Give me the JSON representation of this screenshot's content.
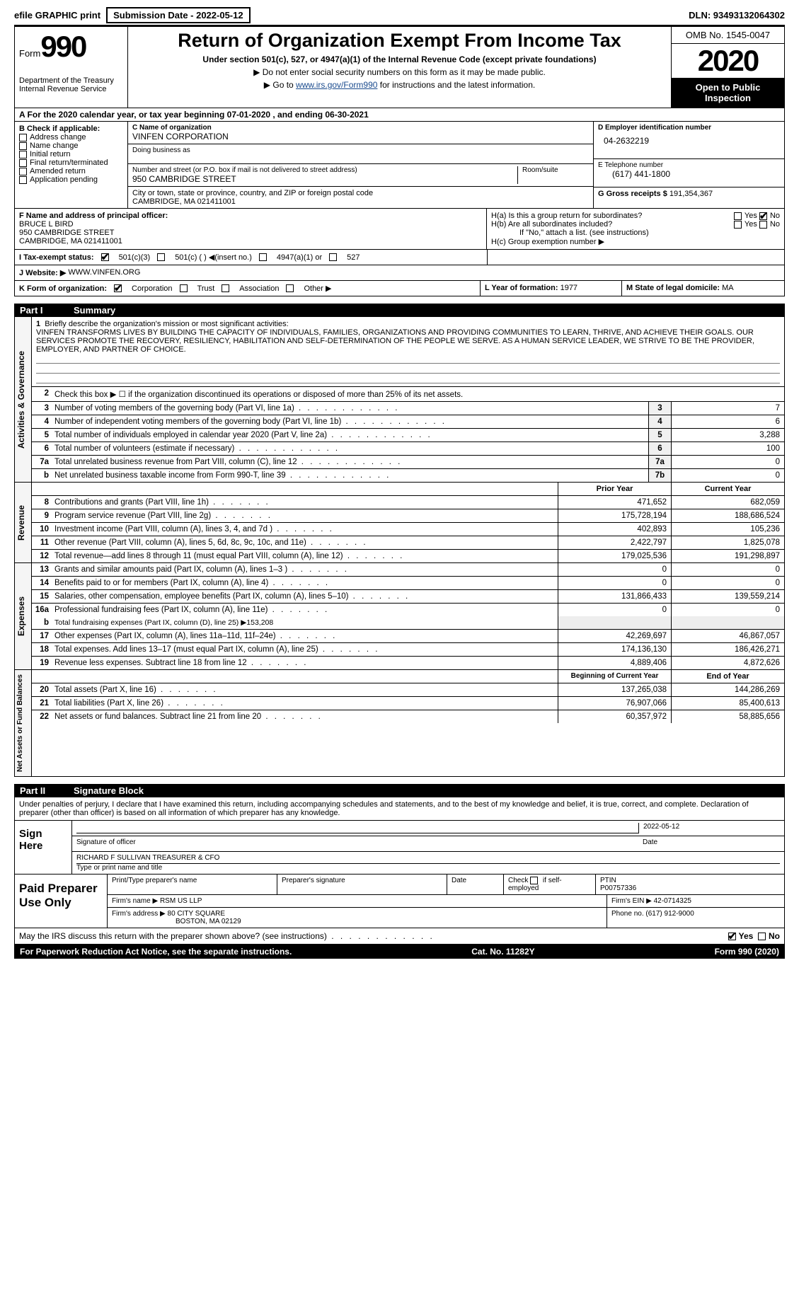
{
  "top_bar": {
    "efile": "efile GRAPHIC print",
    "submission": "Submission Date - 2022-05-12",
    "dln": "DLN: 93493132064302"
  },
  "header": {
    "form_word": "Form",
    "form_num": "990",
    "dept": "Department of the Treasury\nInternal Revenue Service",
    "title": "Return of Organization Exempt From Income Tax",
    "subtitle": "Under section 501(c), 527, or 4947(a)(1) of the Internal Revenue Code (except private foundations)",
    "note1": "Do not enter social security numbers on this form as it may be made public.",
    "note2_pre": "Go to ",
    "note2_link": "www.irs.gov/Form990",
    "note2_post": " for instructions and the latest information.",
    "omb": "OMB No. 1545-0047",
    "year": "2020",
    "open": "Open to Public Inspection"
  },
  "row_a": "A   For the 2020 calendar year, or tax year beginning 07-01-2020      , and ending 06-30-2021",
  "col_b": {
    "label": "B Check if applicable:",
    "items": [
      "Address change",
      "Name change",
      "Initial return",
      "Final return/terminated",
      "Amended return",
      "Application pending"
    ]
  },
  "col_c": {
    "name_lbl": "C Name of organization",
    "name_val": "VINFEN CORPORATION",
    "dba_lbl": "Doing business as",
    "street_lbl": "Number and street (or P.O. box if mail is not delivered to street address)",
    "street_val": "950 CAMBRIDGE STREET",
    "room_lbl": "Room/suite",
    "city_lbl": "City or town, state or province, country, and ZIP or foreign postal code",
    "city_val": "CAMBRIDGE, MA   021411001"
  },
  "col_d": {
    "ein_lbl": "D Employer identification number",
    "ein_val": "04-2632219",
    "phone_lbl": "E Telephone number",
    "phone_val": "(617) 441-1800",
    "gross_lbl": "G Gross receipts $",
    "gross_val": "191,354,367"
  },
  "row_f": {
    "lbl": "F Name and address of principal officer:",
    "name": "BRUCE L BIRD",
    "addr1": "950 CAMBRIDGE STREET",
    "addr2": "CAMBRIDGE, MA   021411001",
    "ha": "H(a)   Is this a group return for subordinates?",
    "hb": "H(b)   Are all subordinates included?",
    "hb_note": "If \"No,\" attach a list. (see instructions)",
    "hc": "H(c)   Group exemption number ▶",
    "yes": "Yes",
    "no": "No"
  },
  "row_i": {
    "lbl": "I    Tax-exempt status:",
    "o1": "501(c)(3)",
    "o2": "501(c) (  ) ◀(insert no.)",
    "o3": "4947(a)(1) or",
    "o4": "527"
  },
  "row_j": {
    "lbl": "J   Website: ▶",
    "val": "WWW.VINFEN.ORG"
  },
  "row_k": {
    "lbl": "K Form of organization:",
    "corp": "Corporation",
    "trust": "Trust",
    "assoc": "Association",
    "other": "Other ▶",
    "l_lbl": "L Year of formation:",
    "l_val": "1977",
    "m_lbl": "M State of legal domicile:",
    "m_val": "MA"
  },
  "parts": {
    "p1": "Part I",
    "p1t": "Summary",
    "p2": "Part II",
    "p2t": "Signature Block"
  },
  "tabs": {
    "ag": "Activities & Governance",
    "rev": "Revenue",
    "exp": "Expenses",
    "na": "Net Assets or Fund Balances"
  },
  "summary": {
    "line1_intro": "Briefly describe the organization's mission or most significant activities:",
    "mission": "VINFEN TRANSFORMS LIVES BY BUILDING THE CAPACITY OF INDIVIDUALS, FAMILIES, ORGANIZATIONS AND PROVIDING COMMUNITIES TO LEARN, THRIVE, AND ACHIEVE THEIR GOALS. OUR SERVICES PROMOTE THE RECOVERY, RESILIENCY, HABILITATION AND SELF-DETERMINATION OF THE PEOPLE WE SERVE. AS A HUMAN SERVICE LEADER, WE STRIVE TO BE THE PROVIDER, EMPLOYER, AND PARTNER OF CHOICE.",
    "line2": "Check this box ▶ ☐  if the organization discontinued its operations or disposed of more than 25% of its net assets.",
    "lines_ag": [
      {
        "n": "3",
        "d": "Number of voting members of the governing body (Part VI, line 1a)",
        "b": "3",
        "v": "7"
      },
      {
        "n": "4",
        "d": "Number of independent voting members of the governing body (Part VI, line 1b)",
        "b": "4",
        "v": "6"
      },
      {
        "n": "5",
        "d": "Total number of individuals employed in calendar year 2020 (Part V, line 2a)",
        "b": "5",
        "v": "3,288"
      },
      {
        "n": "6",
        "d": "Total number of volunteers (estimate if necessary)",
        "b": "6",
        "v": "100"
      },
      {
        "n": "7a",
        "d": "Total unrelated business revenue from Part VIII, column (C), line 12",
        "b": "7a",
        "v": "0"
      },
      {
        "n": "b",
        "d": "Net unrelated business taxable income from Form 990-T, line 39",
        "b": "7b",
        "v": "0"
      }
    ],
    "col_prior": "Prior Year",
    "col_current": "Current Year",
    "lines_rev": [
      {
        "n": "8",
        "d": "Contributions and grants (Part VIII, line 1h)",
        "p": "471,652",
        "c": "682,059"
      },
      {
        "n": "9",
        "d": "Program service revenue (Part VIII, line 2g)",
        "p": "175,728,194",
        "c": "188,686,524"
      },
      {
        "n": "10",
        "d": "Investment income (Part VIII, column (A), lines 3, 4, and 7d )",
        "p": "402,893",
        "c": "105,236"
      },
      {
        "n": "11",
        "d": "Other revenue (Part VIII, column (A), lines 5, 6d, 8c, 9c, 10c, and 11e)",
        "p": "2,422,797",
        "c": "1,825,078"
      },
      {
        "n": "12",
        "d": "Total revenue—add lines 8 through 11 (must equal Part VIII, column (A), line 12)",
        "p": "179,025,536",
        "c": "191,298,897"
      }
    ],
    "lines_exp": [
      {
        "n": "13",
        "d": "Grants and similar amounts paid (Part IX, column (A), lines 1–3 )",
        "p": "0",
        "c": "0"
      },
      {
        "n": "14",
        "d": "Benefits paid to or for members (Part IX, column (A), line 4)",
        "p": "0",
        "c": "0"
      },
      {
        "n": "15",
        "d": "Salaries, other compensation, employee benefits (Part IX, column (A), lines 5–10)",
        "p": "131,866,433",
        "c": "139,559,214"
      },
      {
        "n": "16a",
        "d": "Professional fundraising fees (Part IX, column (A), line 11e)",
        "p": "0",
        "c": "0"
      }
    ],
    "line_b": "Total fundraising expenses (Part IX, column (D), line 25) ▶153,208",
    "lines_exp2": [
      {
        "n": "17",
        "d": "Other expenses (Part IX, column (A), lines 11a–11d, 11f–24e)",
        "p": "42,269,697",
        "c": "46,867,057"
      },
      {
        "n": "18",
        "d": "Total expenses. Add lines 13–17 (must equal Part IX, column (A), line 25)",
        "p": "174,136,130",
        "c": "186,426,271"
      },
      {
        "n": "19",
        "d": "Revenue less expenses. Subtract line 18 from line 12",
        "p": "4,889,406",
        "c": "4,872,626"
      }
    ],
    "col_boy": "Beginning of Current Year",
    "col_eoy": "End of Year",
    "lines_na": [
      {
        "n": "20",
        "d": "Total assets (Part X, line 16)",
        "p": "137,265,038",
        "c": "144,286,269"
      },
      {
        "n": "21",
        "d": "Total liabilities (Part X, line 26)",
        "p": "76,907,066",
        "c": "85,400,613"
      },
      {
        "n": "22",
        "d": "Net assets or fund balances. Subtract line 21 from line 20",
        "p": "60,357,972",
        "c": "58,885,656"
      }
    ]
  },
  "sig": {
    "decl": "Under penalties of perjury, I declare that I have examined this return, including accompanying schedules and statements, and to the best of my knowledge and belief, it is true, correct, and complete. Declaration of preparer (other than officer) is based on all information of which preparer has any knowledge.",
    "sign_here": "Sign Here",
    "sig_officer": "Signature of officer",
    "date": "Date",
    "sig_date": "2022-05-12",
    "name_title": "RICHARD F SULLIVAN  TREASURER & CFO",
    "type_name": "Type or print name and title"
  },
  "preparer": {
    "title": "Paid Preparer Use Only",
    "h1": "Print/Type preparer's name",
    "h2": "Preparer's signature",
    "h3": "Date",
    "h4_pre": "Check",
    "h4_post": "if self-employed",
    "h5": "PTIN",
    "ptin": "P00757336",
    "firm_name_lbl": "Firm's name      ▶",
    "firm_name": "RSM US LLP",
    "firm_ein_lbl": "Firm's EIN ▶",
    "firm_ein": "42-0714325",
    "firm_addr_lbl": "Firm's address ▶",
    "firm_addr1": "80 CITY SQUARE",
    "firm_addr2": "BOSTON, MA   02129",
    "phone_lbl": "Phone no.",
    "phone": "(617) 912-9000"
  },
  "footer_q": "May the IRS discuss this return with the preparer shown above? (see instructions)",
  "footer_yes": "Yes",
  "footer_no": "No",
  "footer": {
    "left": "For Paperwork Reduction Act Notice, see the separate instructions.",
    "mid": "Cat. No. 11282Y",
    "right": "Form 990 (2020)"
  }
}
